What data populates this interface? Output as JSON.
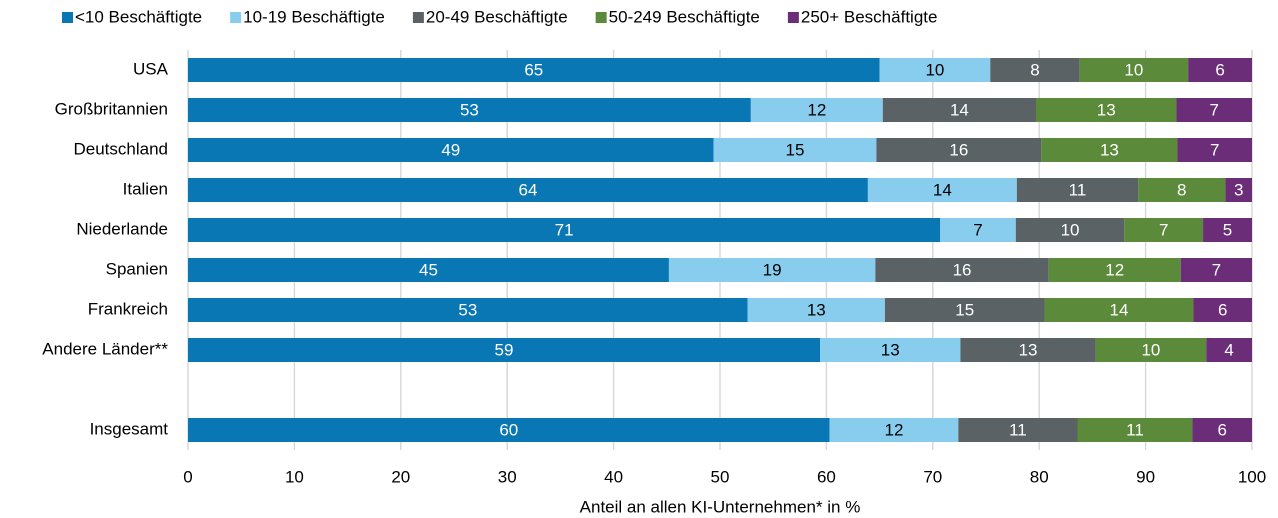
{
  "chart_data": {
    "type": "stacked-bar-horizontal",
    "xlabel": "Anteil an allen KI-Unternehmen* in %",
    "categories": [
      "USA",
      "Großbritannien",
      "Deutschland",
      "Italien",
      "Niederlande",
      "Spanien",
      "Frankreich",
      "Andere Länder**",
      null,
      "Insgesamt"
    ],
    "series": [
      {
        "name": "<10 Beschäftigte",
        "color": "#0a77b5",
        "values": [
          65.0,
          52.9,
          49.4,
          63.9,
          70.7,
          45.2,
          52.6,
          59.4,
          null,
          60.3
        ],
        "value_labels": [
          "65",
          "53",
          "49",
          "64",
          "71",
          "45",
          "53",
          "59",
          null,
          "60"
        ]
      },
      {
        "name": "10-19 Beschäftigte",
        "color": "#88cdee",
        "values": [
          10.4,
          12.4,
          15.3,
          14.0,
          7.1,
          19.4,
          12.9,
          13.2,
          null,
          12.1
        ],
        "value_labels": [
          "10",
          "12",
          "15",
          "14",
          "7",
          "19",
          "13",
          "13",
          null,
          "12"
        ]
      },
      {
        "name": "20-49 Beschäftigte",
        "color": "#5a6266",
        "values": [
          8.4,
          14.4,
          15.5,
          11.4,
          10.2,
          16.3,
          15.0,
          12.7,
          null,
          11.2
        ],
        "value_labels": [
          "8",
          "14",
          "16",
          "11",
          "10",
          "16",
          "15",
          "13",
          null,
          "11"
        ]
      },
      {
        "name": "50-249 Beschäftigte",
        "color": "#5b8a3b",
        "values": [
          10.2,
          13.2,
          12.8,
          8.2,
          7.4,
          12.4,
          14.0,
          10.4,
          null,
          10.8
        ],
        "value_labels": [
          "10",
          "13",
          "13",
          "8",
          "7",
          "12",
          "14",
          "10",
          null,
          "11"
        ]
      },
      {
        "name": "250+ Beschäftigte",
        "color": "#6b2d78",
        "values": [
          6.0,
          7.1,
          7.0,
          2.5,
          4.6,
          6.7,
          5.5,
          4.3,
          null,
          5.6
        ],
        "value_labels": [
          "6",
          "7",
          "7",
          "3",
          "5",
          "7",
          "6",
          "4",
          null,
          "6"
        ]
      }
    ],
    "xlim": [
      0,
      100
    ],
    "xticks": [
      0,
      10,
      20,
      30,
      40,
      50,
      60,
      70,
      80,
      90,
      100
    ],
    "grid": true,
    "legend": "top"
  }
}
